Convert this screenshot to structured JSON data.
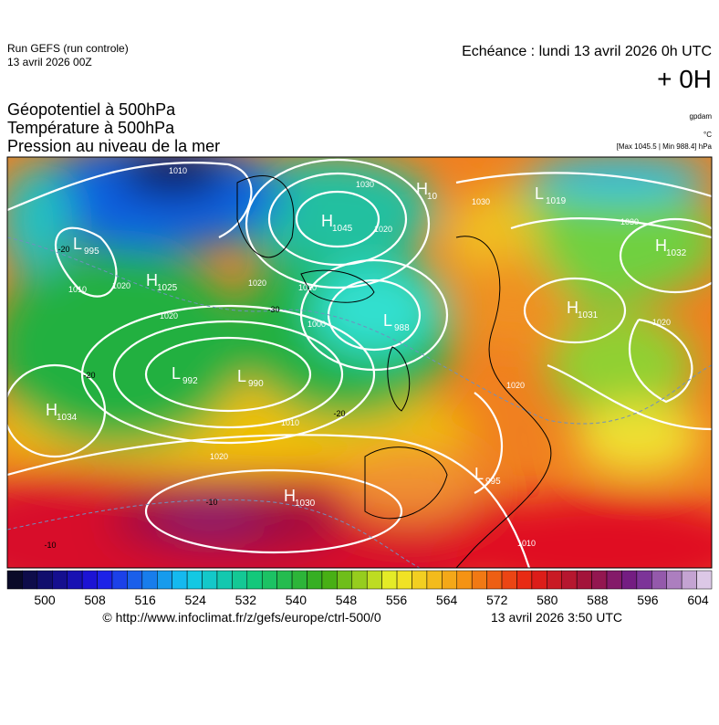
{
  "header": {
    "run": "Run GEFS (run controle)",
    "date": "13 avril 2026 00Z",
    "echeance": "Echéance : lundi 13 avril 2026 0h UTC",
    "offset": "+ 0H"
  },
  "titles": [
    "Géopotentiel à 500hPa",
    "Température à 500hPa",
    "Pression au niveau de la mer"
  ],
  "units": {
    "geopotential": "gpdam",
    "temperature": "°C",
    "pressure": "[Max 1045.5 | Min 988.4] hPa"
  },
  "centers": [
    {
      "kind": "H",
      "value": "1034"
    },
    {
      "kind": "L",
      "value": "995"
    },
    {
      "kind": "H",
      "value": "1025"
    },
    {
      "kind": "H",
      "value": "1045"
    },
    {
      "kind": "L",
      "value": "988"
    },
    {
      "kind": "L",
      "value": "992"
    },
    {
      "kind": "L",
      "value": "990"
    },
    {
      "kind": "H",
      "value": "1030"
    },
    {
      "kind": "H",
      "value": "1031"
    },
    {
      "kind": "H",
      "value": "1032"
    },
    {
      "kind": "L",
      "value": "1019"
    },
    {
      "kind": "H",
      "value": "10"
    },
    {
      "kind": "L",
      "value": "995"
    }
  ],
  "isobar_labels": [
    "1010",
    "1030",
    "1020",
    "1030",
    "1030",
    "1010",
    "1020",
    "1020",
    "1020",
    "1010",
    "1000",
    "1010",
    "1020",
    "1020",
    "1020",
    "1010"
  ],
  "temperature_labels": [
    "-20",
    "-30",
    "-20",
    "-10",
    "-10",
    "-20"
  ],
  "colorbar": {
    "ticks": [
      500,
      508,
      516,
      524,
      532,
      540,
      548,
      556,
      564,
      572,
      580,
      588,
      596,
      604
    ]
  },
  "footer": {
    "source": "© http://www.infoclimat.fr/z/gefs/europe/ctrl-500/0",
    "issued": "13 avril 2026  3:50 UTC"
  }
}
